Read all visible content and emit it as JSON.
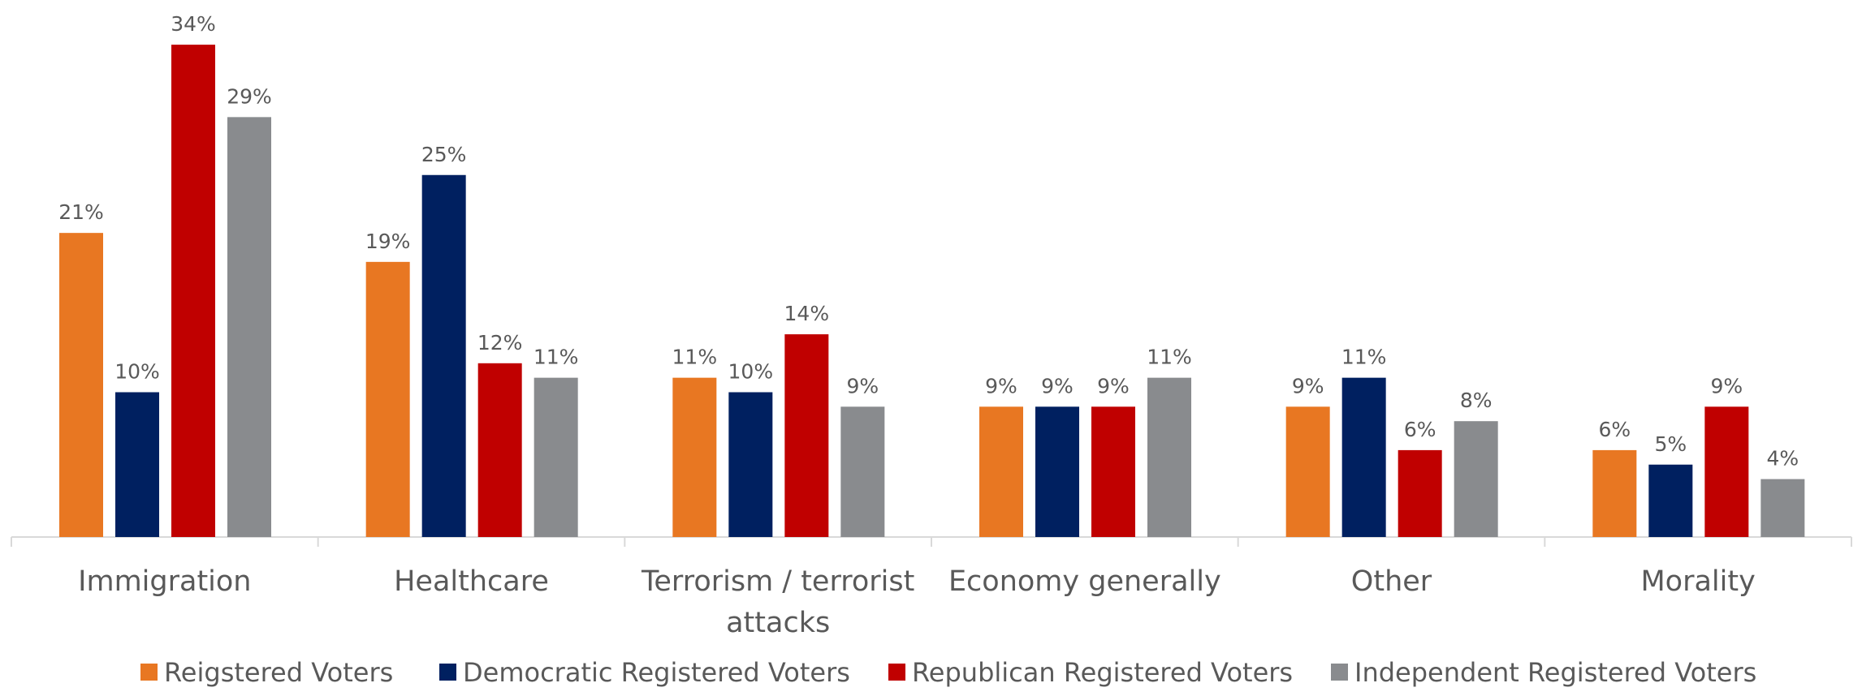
{
  "chart_data": {
    "type": "bar",
    "title": "",
    "xlabel": "",
    "ylabel": "",
    "ylim": [
      0,
      36
    ],
    "grid": false,
    "legend_position": "bottom",
    "categories": [
      [
        "Immigration"
      ],
      [
        "Healthcare"
      ],
      [
        "Terrorism / terrorist",
        "attacks"
      ],
      [
        "Economy generally"
      ],
      [
        "Other"
      ],
      [
        "Morality"
      ]
    ],
    "series": [
      {
        "name": "Reigstered Voters",
        "color": "#E87722",
        "values": [
          21,
          19,
          11,
          9,
          9,
          6
        ],
        "labels": [
          "21%",
          "19%",
          "11%",
          "9%",
          "9%",
          "6%"
        ]
      },
      {
        "name": "Democratic Registered Voters",
        "color": "#002060",
        "values": [
          10,
          25,
          10,
          9,
          11,
          5
        ],
        "labels": [
          "10%",
          "25%",
          "10%",
          "9%",
          "11%",
          "5%"
        ]
      },
      {
        "name": "Republican Registered Voters",
        "color": "#C00000",
        "values": [
          34,
          12,
          14,
          9,
          6,
          9
        ],
        "labels": [
          "34%",
          "12%",
          "14%",
          "9%",
          "6%",
          "9%"
        ]
      },
      {
        "name": "Independent Registered Voters",
        "color": "#898B8E",
        "values": [
          29,
          11,
          9,
          11,
          8,
          4
        ],
        "labels": [
          "29%",
          "11%",
          "9%",
          "11%",
          "8%",
          "4%"
        ]
      }
    ]
  }
}
